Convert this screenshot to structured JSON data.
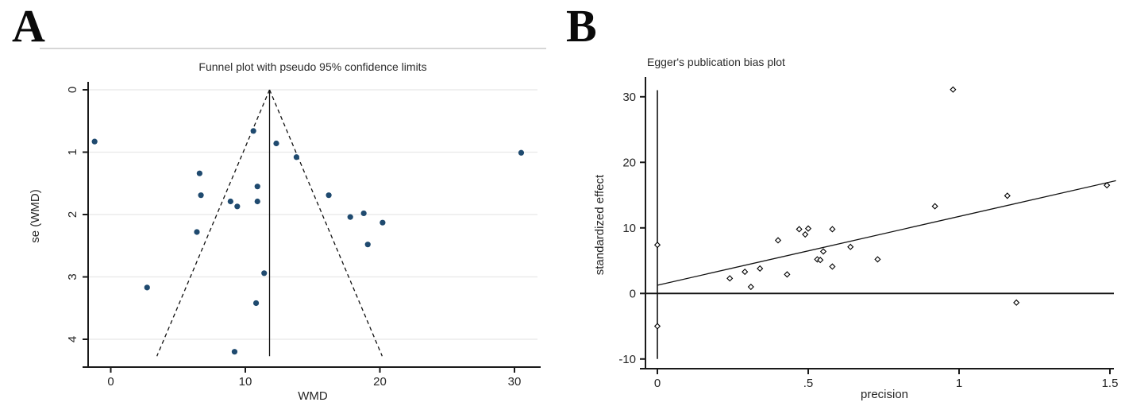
{
  "figure": {
    "panel_a_letter": "A",
    "panel_b_letter": "B"
  },
  "panel_a": {
    "title": "Funnel plot with pseudo 95% confidence limits",
    "xlabel": "WMD",
    "ylabel": "se (WMD)"
  },
  "panel_b": {
    "title": "Egger's publication bias plot",
    "xlabel": "precision",
    "ylabel": "standardized effect"
  },
  "colors": {
    "marker_a_fill": "#1f4a6f",
    "marker_b_stroke": "#000000",
    "marker_b_fill": "#ffffff",
    "axis": "#1a1a1a",
    "grid": "#e8e8e8",
    "divider": "#d6d6d6",
    "text": "#262626"
  },
  "chart_data": [
    {
      "id": "funnel-plot",
      "type": "scatter",
      "title": "Funnel plot with pseudo 95% confidence limits",
      "xlabel": "WMD",
      "ylabel": "se (WMD)",
      "x_ticks": [
        0,
        10,
        20,
        30
      ],
      "x_tick_labels": [
        "0",
        "10",
        "20",
        "30"
      ],
      "y_ticks": [
        0,
        1,
        2,
        3,
        4
      ],
      "y_tick_labels": [
        "0",
        "1",
        "2",
        "3",
        "4"
      ],
      "y_axis_inverted": true,
      "xlim": [
        -1.9,
        32.2
      ],
      "ylim": [
        0,
        4.45
      ],
      "grid": true,
      "marker": "filled-circle",
      "points_wmd_se": [
        [
          -1.2,
          0.83
        ],
        [
          2.7,
          3.17
        ],
        [
          6.4,
          2.28
        ],
        [
          6.6,
          1.34
        ],
        [
          6.7,
          1.69
        ],
        [
          8.9,
          1.79
        ],
        [
          9.2,
          4.2
        ],
        [
          9.4,
          1.87
        ],
        [
          10.6,
          0.66
        ],
        [
          10.8,
          3.42
        ],
        [
          10.9,
          1.55
        ],
        [
          10.9,
          1.79
        ],
        [
          11.4,
          2.94
        ],
        [
          12.3,
          0.86
        ],
        [
          13.8,
          1.08
        ],
        [
          16.2,
          1.69
        ],
        [
          17.8,
          2.04
        ],
        [
          18.8,
          1.98
        ],
        [
          19.1,
          2.48
        ],
        [
          20.2,
          2.13
        ],
        [
          30.5,
          1.01
        ]
      ],
      "center_line_wmd": 11.8,
      "funnel_ci_multiplier": 1.96,
      "funnel_se_bottom": 4.27
    },
    {
      "id": "egger-plot",
      "type": "scatter",
      "title": "Egger's publication bias plot",
      "xlabel": "precision",
      "ylabel": "standardized effect",
      "x_ticks": [
        0,
        0.5,
        1,
        1.5
      ],
      "x_tick_labels": [
        "0",
        ".5",
        "1",
        "1.5"
      ],
      "y_ticks": [
        -10,
        0,
        10,
        20,
        30
      ],
      "y_tick_labels": [
        "-10",
        "0",
        "10",
        "20",
        "30"
      ],
      "xlim": [
        -0.04,
        1.55
      ],
      "ylim": [
        -12,
        32
      ],
      "grid": false,
      "marker": "hollow-diamond",
      "points_precision_effect": [
        [
          0,
          7.4
        ],
        [
          0,
          -5.0
        ],
        [
          0.24,
          2.3
        ],
        [
          0.29,
          3.3
        ],
        [
          0.31,
          1.0
        ],
        [
          0.34,
          3.8
        ],
        [
          0.4,
          8.1
        ],
        [
          0.43,
          2.9
        ],
        [
          0.47,
          9.8
        ],
        [
          0.49,
          9.0
        ],
        [
          0.5,
          9.9
        ],
        [
          0.53,
          5.2
        ],
        [
          0.54,
          5.1
        ],
        [
          0.55,
          6.4
        ],
        [
          0.58,
          9.8
        ],
        [
          0.58,
          4.1
        ],
        [
          0.64,
          7.1
        ],
        [
          0.73,
          5.2
        ],
        [
          0.92,
          13.3
        ],
        [
          0.98,
          31.1
        ],
        [
          1.16,
          14.9
        ],
        [
          1.19,
          -1.4
        ],
        [
          1.49,
          16.5
        ]
      ],
      "regression_line": {
        "x0": 0,
        "y0": 1.25,
        "x1": 1.52,
        "y1": 17.2
      },
      "vertical_line": {
        "x": 0,
        "y0": -10,
        "y1": 31
      },
      "horizontal_line": {
        "y": 0
      }
    }
  ]
}
